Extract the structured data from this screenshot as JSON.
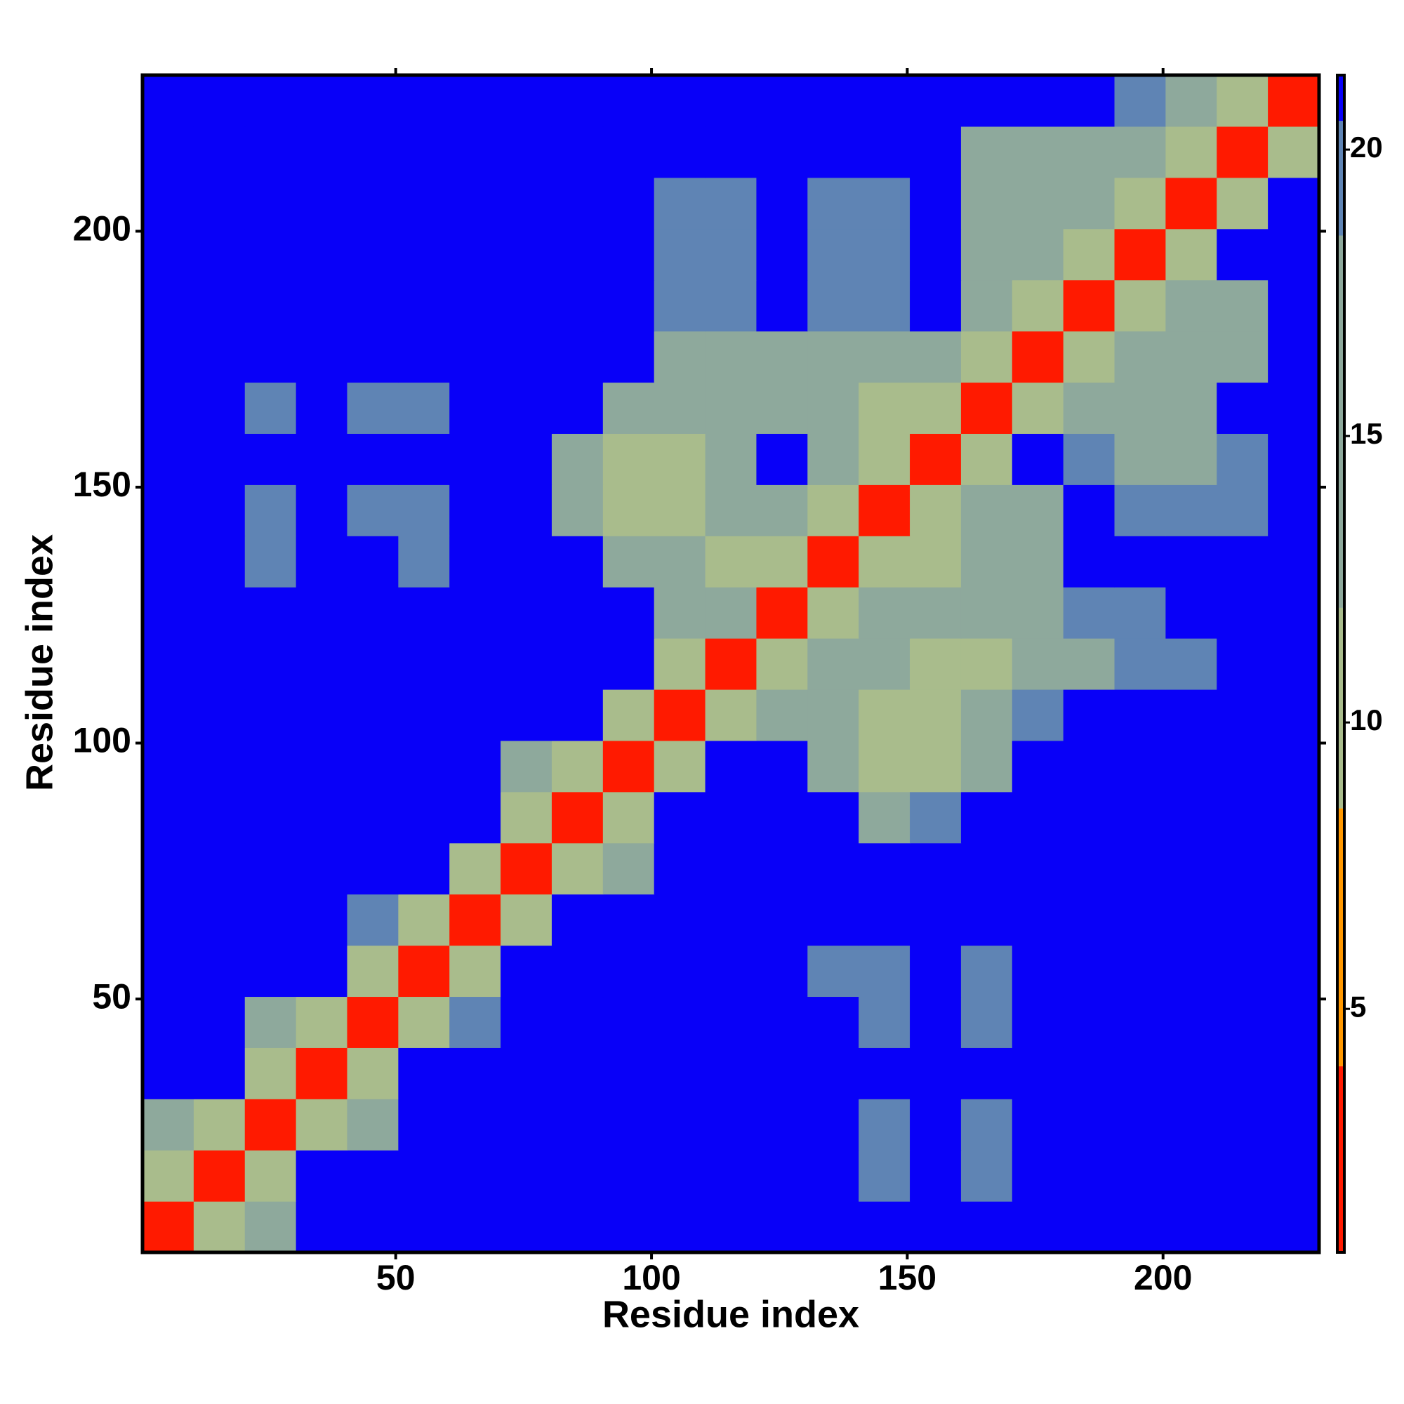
{
  "chart_data": {
    "type": "heatmap",
    "x_label": "Residue index",
    "y_label": "Residue index",
    "xlim": [
      0.5,
      230.5
    ],
    "ylim": [
      0.5,
      230.5
    ],
    "xticks": [
      50,
      100,
      150,
      200
    ],
    "yticks": [
      50,
      100,
      150,
      200
    ],
    "x_bins": [
      0.5,
      10.5,
      20.5,
      30.5,
      40.5,
      50.5,
      60.5,
      70.5,
      80.5,
      90.5,
      100.5,
      110.5,
      120.5,
      130.5,
      140.5,
      150.5,
      160.5,
      170.5,
      180.5,
      190.5,
      200.5,
      210.5,
      220.5,
      230.5
    ],
    "y_bins": [
      0.5,
      10.5,
      20.5,
      30.5,
      40.5,
      50.5,
      60.5,
      70.5,
      80.5,
      90.5,
      100.5,
      110.5,
      120.5,
      130.5,
      140.5,
      150.5,
      160.5,
      170.5,
      180.5,
      190.5,
      200.5,
      210.5,
      220.5,
      230.5
    ],
    "values": [
      [
        3,
        10,
        15,
        21,
        21,
        21,
        21,
        21,
        21,
        21,
        21,
        21,
        21,
        21,
        21,
        21,
        21,
        21,
        21,
        21,
        21,
        21,
        21
      ],
      [
        10,
        3,
        10,
        21,
        21,
        21,
        21,
        21,
        21,
        21,
        21,
        21,
        21,
        21,
        20.5,
        21,
        20.5,
        21,
        21,
        21,
        21,
        21,
        21
      ],
      [
        15,
        10,
        3,
        12,
        16,
        21,
        21,
        21,
        21,
        21,
        21,
        21,
        21,
        21,
        20,
        21,
        20,
        21,
        21,
        21,
        21,
        21,
        21
      ],
      [
        21,
        21,
        12,
        3,
        12,
        21,
        21,
        21,
        21,
        21,
        21,
        21,
        21,
        21,
        21,
        21,
        21,
        21,
        21,
        21,
        21,
        21,
        21
      ],
      [
        21,
        21,
        16,
        12,
        3,
        12,
        19,
        21,
        21,
        21,
        21,
        21,
        21,
        21,
        20,
        21,
        19.5,
        21,
        21,
        21,
        21,
        21,
        21
      ],
      [
        21,
        21,
        21,
        21,
        12,
        3,
        12,
        21,
        21,
        21,
        21,
        21,
        21,
        20,
        20,
        21,
        19.5,
        21,
        21,
        21,
        21,
        21,
        21
      ],
      [
        21,
        21,
        21,
        21,
        19,
        12,
        3,
        12,
        21,
        21,
        21,
        21,
        21,
        21,
        21,
        21,
        21,
        21,
        21,
        21,
        21,
        21,
        21
      ],
      [
        21,
        21,
        21,
        21,
        21,
        21,
        12,
        3,
        12,
        18,
        21,
        21,
        21,
        21,
        21,
        21,
        21,
        21,
        21,
        21,
        21,
        21,
        21
      ],
      [
        21,
        21,
        21,
        21,
        21,
        21,
        21,
        12,
        3,
        12,
        21,
        21,
        21,
        21,
        18,
        19,
        21,
        21,
        21,
        21,
        21,
        21,
        21
      ],
      [
        21,
        21,
        21,
        21,
        21,
        21,
        21,
        18,
        12,
        3,
        12,
        21,
        21,
        16,
        10,
        11,
        17,
        21,
        21,
        21,
        21,
        21,
        21
      ],
      [
        21,
        21,
        21,
        21,
        21,
        21,
        21,
        21,
        21,
        12,
        3,
        12,
        13,
        13,
        11,
        10,
        15,
        19,
        21,
        21,
        21,
        21,
        21
      ],
      [
        21,
        21,
        21,
        21,
        21,
        21,
        21,
        21,
        21,
        21,
        12,
        3,
        11,
        14,
        15,
        12,
        12,
        14,
        17,
        19,
        20,
        21,
        21
      ],
      [
        21,
        21,
        21,
        21,
        21,
        21,
        21,
        21,
        21,
        21,
        17,
        13,
        3,
        12,
        15,
        14,
        16,
        17,
        19,
        20,
        21,
        21,
        21
      ],
      [
        21,
        21,
        20.5,
        21,
        21,
        20.5,
        21,
        21,
        21,
        17,
        14,
        12,
        12,
        3,
        12,
        12,
        13,
        17,
        21,
        21,
        21,
        21,
        21
      ],
      [
        21,
        21,
        20,
        21,
        20,
        20,
        21,
        21,
        14,
        11,
        12,
        14,
        17,
        12,
        3,
        11,
        13,
        17,
        21,
        19,
        20,
        20,
        21
      ],
      [
        21,
        21,
        21,
        21,
        21,
        21,
        21,
        21,
        15,
        12,
        11,
        16,
        21,
        16,
        10,
        3,
        12,
        21,
        19,
        17,
        17,
        19,
        21
      ],
      [
        21,
        21,
        20,
        21,
        20,
        19.5,
        21,
        21,
        21,
        16,
        13,
        15,
        16,
        14,
        12,
        12,
        3,
        12,
        16,
        16,
        17,
        21,
        21
      ],
      [
        21,
        21,
        21,
        21,
        21,
        21,
        21,
        21,
        21,
        21,
        17,
        14,
        15,
        16,
        17,
        15,
        12,
        3,
        12,
        15,
        15,
        17,
        21
      ],
      [
        21,
        21,
        21,
        21,
        21,
        21,
        21,
        21,
        21,
        21,
        20,
        20,
        21,
        20,
        20,
        21,
        15,
        12,
        3,
        12,
        14,
        18,
        21
      ],
      [
        21,
        21,
        21,
        21,
        21,
        21,
        21,
        21,
        21,
        21,
        20,
        20,
        21,
        20,
        20,
        21,
        16,
        15,
        12,
        3,
        12,
        21,
        21
      ],
      [
        21,
        21,
        21,
        21,
        21,
        21,
        21,
        21,
        21,
        21,
        20,
        20,
        21,
        20,
        20,
        21,
        15,
        14,
        14,
        12,
        3,
        12,
        21
      ],
      [
        21,
        21,
        21,
        21,
        21,
        21,
        21,
        21,
        21,
        21,
        21,
        21,
        21,
        21,
        21,
        21,
        18,
        17,
        17,
        18,
        12,
        3,
        12
      ],
      [
        21,
        21,
        21,
        21,
        21,
        21,
        21,
        21,
        21,
        21,
        21,
        21,
        21,
        21,
        21,
        21,
        21,
        21,
        21,
        20,
        17,
        12,
        3
      ]
    ],
    "colorbar": {
      "lim": [
        0.75,
        21.3
      ],
      "ticks": [
        5,
        10,
        15,
        20
      ],
      "bounds": [
        0.75,
        4,
        8.5,
        12,
        18.5,
        20.5,
        21.3
      ],
      "colors": [
        "#ff1a00",
        "#ff9800",
        "#a9bc8c",
        "#8ea99c",
        "#5f84b4",
        "#0800f8"
      ]
    }
  }
}
